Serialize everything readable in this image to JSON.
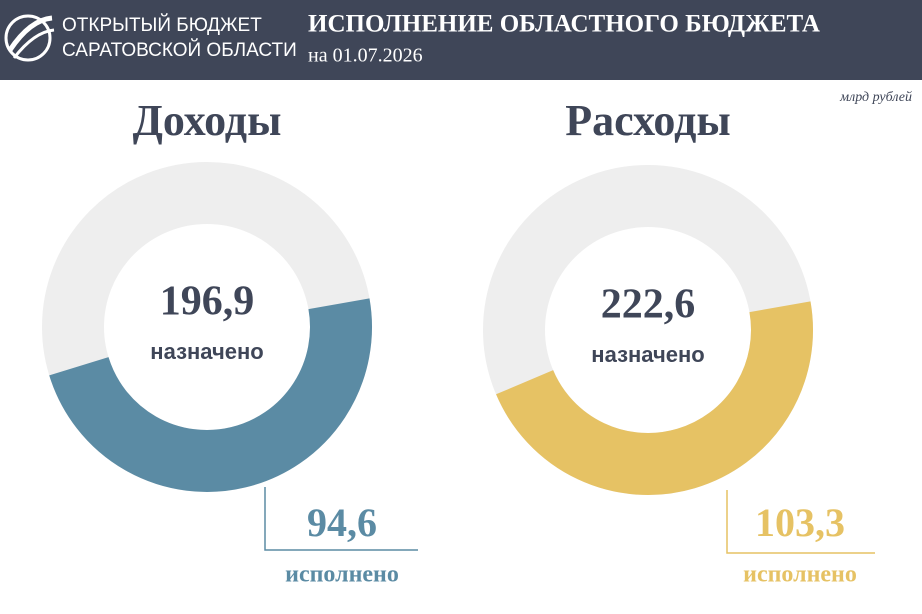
{
  "header": {
    "brand": [
      "ОТКРЫТЫЙ БЮДЖЕТ",
      "САРАТОВСКОЙ ОБЛАСТИ"
    ],
    "title": "ИСПОЛНЕНИЕ ОБЛАСТНОГО БЮДЖЕТА",
    "date": "на 01.07.2026"
  },
  "units": "млрд рублей",
  "chart_data": [
    {
      "type": "donut",
      "title": "Доходы",
      "categories": [
        "назначено",
        "исполнено"
      ],
      "values": [
        196.9,
        94.6
      ],
      "value_labels": [
        "196,9",
        "94,6"
      ],
      "colors": [
        "#eeeeee",
        "#5b8ba4"
      ]
    },
    {
      "type": "donut",
      "title": "Расходы",
      "categories": [
        "назначено",
        "исполнено"
      ],
      "values": [
        222.6,
        103.3
      ],
      "value_labels": [
        "222,6",
        "103,3"
      ],
      "colors": [
        "#eeeeee",
        "#e6c264"
      ]
    }
  ]
}
